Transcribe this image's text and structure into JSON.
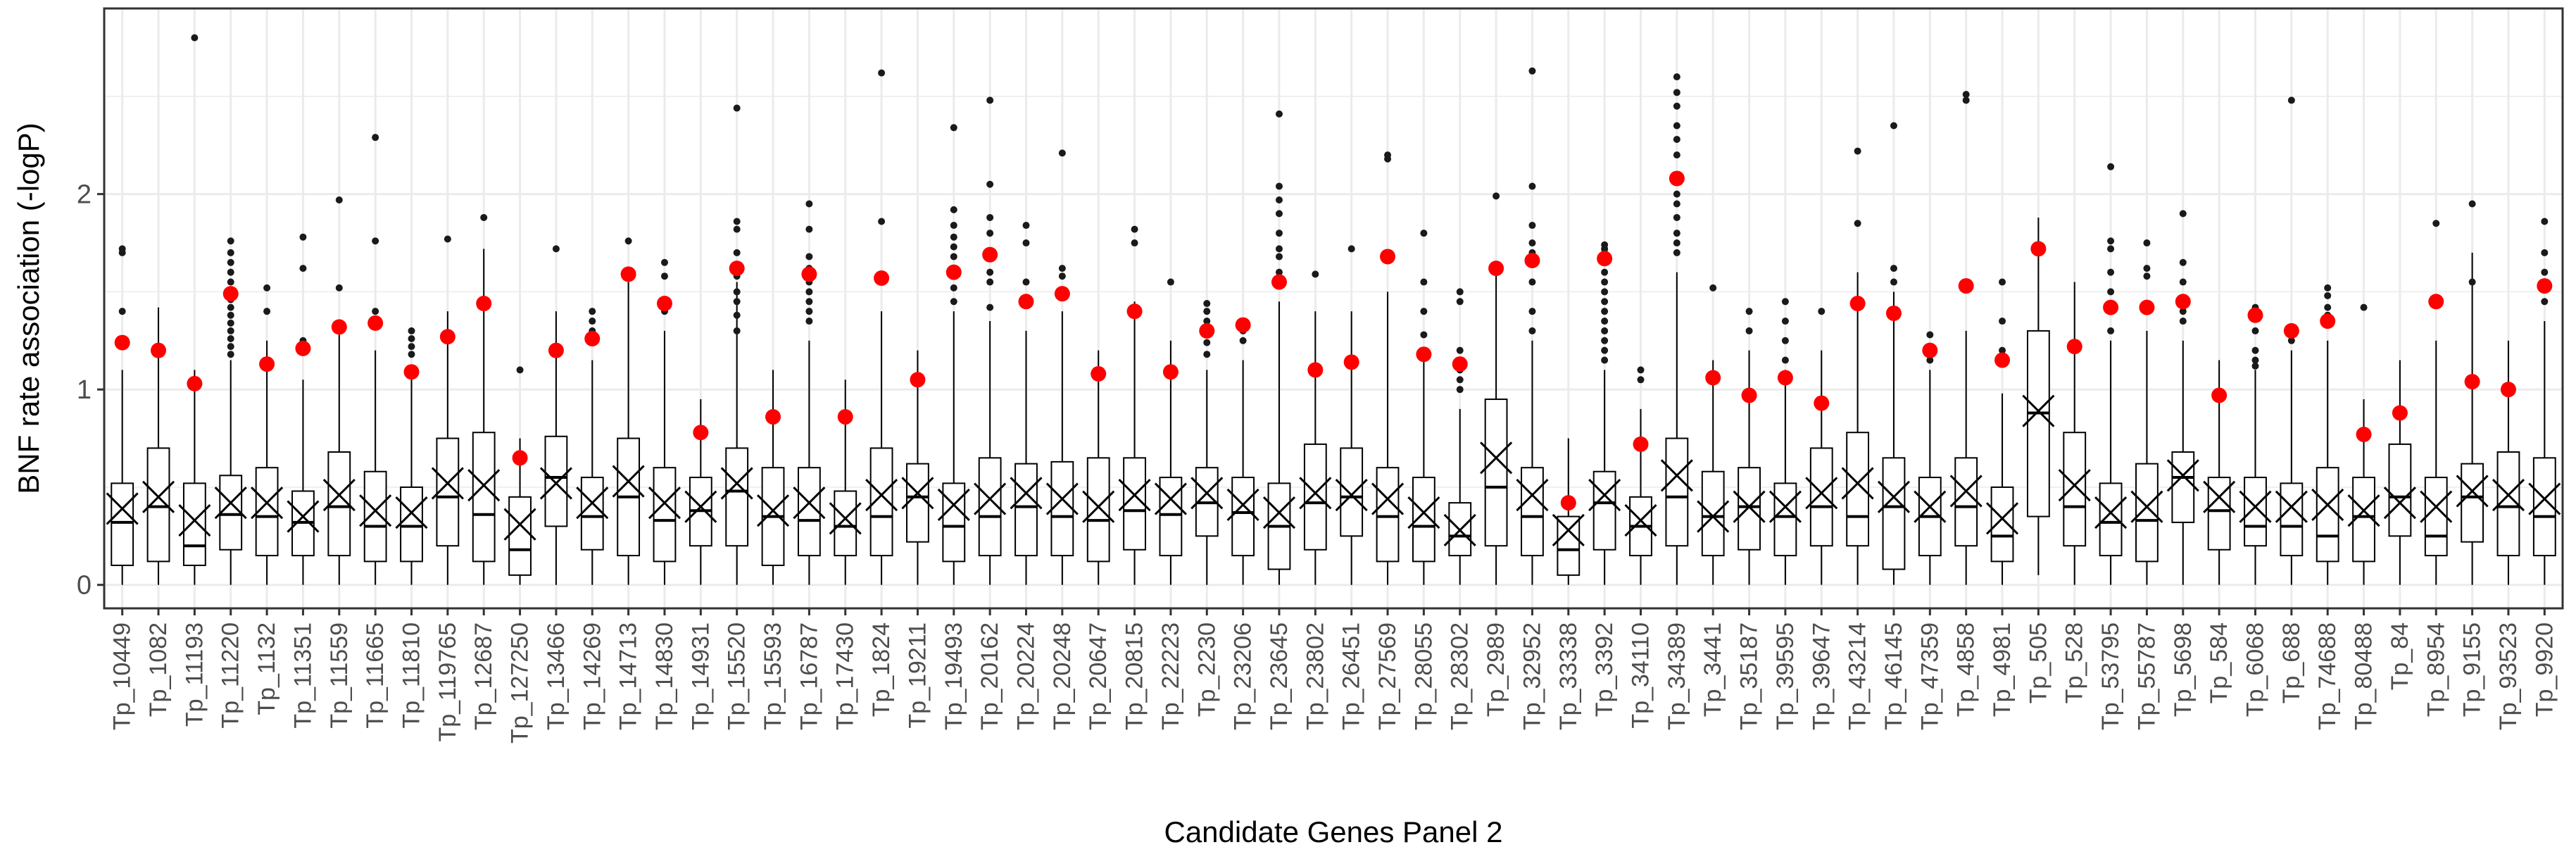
{
  "chart_data": {
    "type": "boxplot",
    "title": "",
    "xlabel": "Candidate Genes Panel 2",
    "ylabel": "BNF rate association (-logP)",
    "ylim": [
      -0.12,
      2.95
    ],
    "yticks": [
      0,
      1,
      2
    ],
    "grid": true,
    "legend": "none",
    "colors": {
      "box": "#000000",
      "highlight": "#ff0000",
      "grid": "#ebebeb",
      "panel_border": "#333333"
    },
    "mean_marker": "x-cross",
    "highlight_marker": "red-dot",
    "categories": [
      "Tp_10449",
      "Tp_1082",
      "Tp_11193",
      "Tp_11220",
      "Tp_1132",
      "Tp_11351",
      "Tp_11559",
      "Tp_11665",
      "Tp_11810",
      "Tp_119765",
      "Tp_12687",
      "Tp_127250",
      "Tp_13466",
      "Tp_14269",
      "Tp_14713",
      "Tp_14830",
      "Tp_14931",
      "Tp_15520",
      "Tp_15593",
      "Tp_16787",
      "Tp_17430",
      "Tp_1824",
      "Tp_19211",
      "Tp_19493",
      "Tp_20162",
      "Tp_20224",
      "Tp_20248",
      "Tp_20647",
      "Tp_20815",
      "Tp_22223",
      "Tp_2230",
      "Tp_23206",
      "Tp_23645",
      "Tp_23802",
      "Tp_26451",
      "Tp_27569",
      "Tp_28055",
      "Tp_28302",
      "Tp_2989",
      "Tp_32952",
      "Tp_33338",
      "Tp_3392",
      "Tp_34110",
      "Tp_34389",
      "Tp_3441",
      "Tp_35187",
      "Tp_39595",
      "Tp_39647",
      "Tp_43214",
      "Tp_46145",
      "Tp_47359",
      "Tp_4858",
      "Tp_4981",
      "Tp_505",
      "Tp_528",
      "Tp_53795",
      "Tp_55787",
      "Tp_5698",
      "Tp_584",
      "Tp_6068",
      "Tp_688",
      "Tp_74688",
      "Tp_80488",
      "Tp_84",
      "Tp_8954",
      "Tp_9155",
      "Tp_93523",
      "Tp_9920"
    ],
    "boxes": [
      {
        "lw": 0.0,
        "q1": 0.1,
        "median": 0.32,
        "q3": 0.52,
        "uw": 1.1,
        "mean": 0.39,
        "highlight": 1.24,
        "outliers": [
          1.4,
          1.7,
          1.72
        ]
      },
      {
        "lw": 0.0,
        "q1": 0.12,
        "median": 0.4,
        "q3": 0.7,
        "uw": 1.42,
        "mean": 0.45,
        "highlight": 1.2,
        "outliers": []
      },
      {
        "lw": 0.0,
        "q1": 0.1,
        "median": 0.2,
        "q3": 0.52,
        "uw": 1.1,
        "mean": 0.33,
        "highlight": 1.03,
        "outliers": [
          2.8
        ]
      },
      {
        "lw": 0.0,
        "q1": 0.18,
        "median": 0.36,
        "q3": 0.56,
        "uw": 1.15,
        "mean": 0.42,
        "highlight": 1.49,
        "outliers": [
          1.18,
          1.22,
          1.26,
          1.3,
          1.34,
          1.38,
          1.42,
          1.46,
          1.55,
          1.6,
          1.65,
          1.7,
          1.76
        ]
      },
      {
        "lw": 0.0,
        "q1": 0.15,
        "median": 0.35,
        "q3": 0.6,
        "uw": 1.25,
        "mean": 0.42,
        "highlight": 1.13,
        "outliers": [
          1.4,
          1.52
        ]
      },
      {
        "lw": 0.0,
        "q1": 0.15,
        "median": 0.32,
        "q3": 0.48,
        "uw": 1.05,
        "mean": 0.35,
        "highlight": 1.21,
        "outliers": [
          1.25,
          1.62,
          1.78
        ]
      },
      {
        "lw": 0.0,
        "q1": 0.15,
        "median": 0.4,
        "q3": 0.68,
        "uw": 1.28,
        "mean": 0.46,
        "highlight": 1.32,
        "outliers": [
          1.52,
          1.97
        ]
      },
      {
        "lw": 0.0,
        "q1": 0.12,
        "median": 0.3,
        "q3": 0.58,
        "uw": 1.2,
        "mean": 0.38,
        "highlight": 1.34,
        "outliers": [
          1.4,
          1.76,
          2.29
        ]
      },
      {
        "lw": 0.0,
        "q1": 0.12,
        "median": 0.3,
        "q3": 0.5,
        "uw": 1.1,
        "mean": 0.37,
        "highlight": 1.09,
        "outliers": [
          1.18,
          1.22,
          1.26,
          1.3
        ]
      },
      {
        "lw": 0.0,
        "q1": 0.2,
        "median": 0.45,
        "q3": 0.75,
        "uw": 1.4,
        "mean": 0.52,
        "highlight": 1.27,
        "outliers": [
          1.77
        ]
      },
      {
        "lw": 0.0,
        "q1": 0.12,
        "median": 0.36,
        "q3": 0.78,
        "uw": 1.72,
        "mean": 0.51,
        "highlight": 1.44,
        "outliers": [
          1.88
        ]
      },
      {
        "lw": 0.0,
        "q1": 0.05,
        "median": 0.18,
        "q3": 0.45,
        "uw": 0.75,
        "mean": 0.31,
        "highlight": 0.65,
        "outliers": [
          1.1
        ]
      },
      {
        "lw": 0.0,
        "q1": 0.3,
        "median": 0.55,
        "q3": 0.76,
        "uw": 1.4,
        "mean": 0.52,
        "highlight": 1.2,
        "outliers": [
          1.72
        ]
      },
      {
        "lw": 0.0,
        "q1": 0.18,
        "median": 0.35,
        "q3": 0.55,
        "uw": 1.15,
        "mean": 0.42,
        "highlight": 1.26,
        "outliers": [
          1.3,
          1.35,
          1.4
        ]
      },
      {
        "lw": 0.0,
        "q1": 0.15,
        "median": 0.45,
        "q3": 0.75,
        "uw": 1.55,
        "mean": 0.53,
        "highlight": 1.59,
        "outliers": [
          1.76
        ]
      },
      {
        "lw": 0.0,
        "q1": 0.12,
        "median": 0.33,
        "q3": 0.6,
        "uw": 1.3,
        "mean": 0.42,
        "highlight": 1.44,
        "outliers": [
          1.4,
          1.58,
          1.65
        ]
      },
      {
        "lw": 0.0,
        "q1": 0.2,
        "median": 0.38,
        "q3": 0.55,
        "uw": 0.95,
        "mean": 0.4,
        "highlight": 0.78,
        "outliers": []
      },
      {
        "lw": 0.0,
        "q1": 0.2,
        "median": 0.48,
        "q3": 0.7,
        "uw": 1.55,
        "mean": 0.52,
        "highlight": 1.62,
        "outliers": [
          1.3,
          1.38,
          1.45,
          1.5,
          1.58,
          1.7,
          1.82,
          1.86,
          2.44
        ]
      },
      {
        "lw": 0.0,
        "q1": 0.1,
        "median": 0.35,
        "q3": 0.6,
        "uw": 1.1,
        "mean": 0.38,
        "highlight": 0.86,
        "outliers": []
      },
      {
        "lw": 0.0,
        "q1": 0.15,
        "median": 0.33,
        "q3": 0.6,
        "uw": 1.25,
        "mean": 0.42,
        "highlight": 1.59,
        "outliers": [
          1.35,
          1.4,
          1.45,
          1.5,
          1.55,
          1.62,
          1.68,
          1.82,
          1.95
        ]
      },
      {
        "lw": 0.0,
        "q1": 0.15,
        "median": 0.3,
        "q3": 0.48,
        "uw": 1.05,
        "mean": 0.34,
        "highlight": 0.86,
        "outliers": []
      },
      {
        "lw": 0.0,
        "q1": 0.15,
        "median": 0.35,
        "q3": 0.7,
        "uw": 1.4,
        "mean": 0.46,
        "highlight": 1.57,
        "outliers": [
          1.86,
          2.62
        ]
      },
      {
        "lw": 0.0,
        "q1": 0.22,
        "median": 0.45,
        "q3": 0.62,
        "uw": 1.2,
        "mean": 0.47,
        "highlight": 1.05,
        "outliers": []
      },
      {
        "lw": 0.0,
        "q1": 0.12,
        "median": 0.3,
        "q3": 0.52,
        "uw": 1.4,
        "mean": 0.41,
        "highlight": 1.6,
        "outliers": [
          1.45,
          1.52,
          1.6,
          1.68,
          1.73,
          1.78,
          1.84,
          1.92,
          2.34
        ]
      },
      {
        "lw": 0.0,
        "q1": 0.15,
        "median": 0.35,
        "q3": 0.65,
        "uw": 1.35,
        "mean": 0.44,
        "highlight": 1.69,
        "outliers": [
          1.42,
          1.55,
          1.6,
          1.8,
          1.88,
          2.05,
          2.48
        ]
      },
      {
        "lw": 0.0,
        "q1": 0.15,
        "median": 0.4,
        "q3": 0.62,
        "uw": 1.3,
        "mean": 0.47,
        "highlight": 1.45,
        "outliers": [
          1.55,
          1.75,
          1.84
        ]
      },
      {
        "lw": 0.0,
        "q1": 0.15,
        "median": 0.35,
        "q3": 0.63,
        "uw": 1.4,
        "mean": 0.44,
        "highlight": 1.49,
        "outliers": [
          1.58,
          1.62,
          2.21
        ]
      },
      {
        "lw": 0.0,
        "q1": 0.12,
        "median": 0.33,
        "q3": 0.65,
        "uw": 1.2,
        "mean": 0.4,
        "highlight": 1.08,
        "outliers": []
      },
      {
        "lw": 0.0,
        "q1": 0.18,
        "median": 0.38,
        "q3": 0.65,
        "uw": 1.45,
        "mean": 0.46,
        "highlight": 1.4,
        "outliers": [
          1.75,
          1.82
        ]
      },
      {
        "lw": 0.0,
        "q1": 0.15,
        "median": 0.36,
        "q3": 0.55,
        "uw": 1.25,
        "mean": 0.44,
        "highlight": 1.09,
        "outliers": [
          1.55
        ]
      },
      {
        "lw": 0.0,
        "q1": 0.25,
        "median": 0.42,
        "q3": 0.6,
        "uw": 1.1,
        "mean": 0.47,
        "highlight": 1.3,
        "outliers": [
          1.18,
          1.24,
          1.3,
          1.35,
          1.4,
          1.44
        ]
      },
      {
        "lw": 0.0,
        "q1": 0.15,
        "median": 0.37,
        "q3": 0.55,
        "uw": 1.15,
        "mean": 0.41,
        "highlight": 1.33,
        "outliers": [
          1.25,
          1.3
        ]
      },
      {
        "lw": 0.0,
        "q1": 0.08,
        "median": 0.3,
        "q3": 0.52,
        "uw": 1.45,
        "mean": 0.37,
        "highlight": 1.55,
        "outliers": [
          1.6,
          1.68,
          1.72,
          1.8,
          1.9,
          1.97,
          2.04,
          2.41
        ]
      },
      {
        "lw": 0.0,
        "q1": 0.18,
        "median": 0.42,
        "q3": 0.72,
        "uw": 1.4,
        "mean": 0.47,
        "highlight": 1.1,
        "outliers": [
          1.59
        ]
      },
      {
        "lw": 0.0,
        "q1": 0.25,
        "median": 0.45,
        "q3": 0.7,
        "uw": 1.4,
        "mean": 0.46,
        "highlight": 1.14,
        "outliers": [
          1.72
        ]
      },
      {
        "lw": 0.0,
        "q1": 0.12,
        "median": 0.35,
        "q3": 0.6,
        "uw": 1.5,
        "mean": 0.44,
        "highlight": 1.68,
        "outliers": [
          2.18,
          2.2
        ]
      },
      {
        "lw": 0.0,
        "q1": 0.12,
        "median": 0.3,
        "q3": 0.55,
        "uw": 1.15,
        "mean": 0.37,
        "highlight": 1.18,
        "outliers": [
          1.28,
          1.4,
          1.55,
          1.8
        ]
      },
      {
        "lw": 0.0,
        "q1": 0.15,
        "median": 0.25,
        "q3": 0.42,
        "uw": 0.9,
        "mean": 0.28,
        "highlight": 1.13,
        "outliers": [
          1.0,
          1.05,
          1.1,
          1.15,
          1.2,
          1.45,
          1.5
        ]
      },
      {
        "lw": 0.0,
        "q1": 0.2,
        "median": 0.5,
        "q3": 0.95,
        "uw": 1.6,
        "mean": 0.65,
        "highlight": 1.62,
        "outliers": [
          1.99
        ]
      },
      {
        "lw": 0.0,
        "q1": 0.15,
        "median": 0.35,
        "q3": 0.6,
        "uw": 1.25,
        "mean": 0.46,
        "highlight": 1.66,
        "outliers": [
          1.3,
          1.4,
          1.55,
          1.7,
          1.75,
          1.84,
          2.04,
          2.63
        ]
      },
      {
        "lw": 0.0,
        "q1": 0.05,
        "median": 0.18,
        "q3": 0.35,
        "uw": 0.75,
        "mean": 0.28,
        "highlight": 0.42,
        "outliers": []
      },
      {
        "lw": 0.0,
        "q1": 0.18,
        "median": 0.42,
        "q3": 0.58,
        "uw": 1.1,
        "mean": 0.46,
        "highlight": 1.67,
        "outliers": [
          1.15,
          1.2,
          1.25,
          1.3,
          1.35,
          1.4,
          1.45,
          1.5,
          1.55,
          1.6,
          1.65,
          1.7,
          1.72,
          1.74
        ]
      },
      {
        "lw": 0.0,
        "q1": 0.15,
        "median": 0.3,
        "q3": 0.45,
        "uw": 0.9,
        "mean": 0.33,
        "highlight": 0.72,
        "outliers": [
          1.05,
          1.1
        ]
      },
      {
        "lw": 0.0,
        "q1": 0.2,
        "median": 0.45,
        "q3": 0.75,
        "uw": 1.6,
        "mean": 0.56,
        "highlight": 2.08,
        "outliers": [
          1.7,
          1.75,
          1.8,
          1.88,
          1.95,
          2.0,
          2.1,
          2.2,
          2.28,
          2.35,
          2.45,
          2.52,
          2.6
        ]
      },
      {
        "lw": 0.0,
        "q1": 0.15,
        "median": 0.35,
        "q3": 0.58,
        "uw": 1.15,
        "mean": 0.35,
        "highlight": 1.06,
        "outliers": [
          1.52
        ]
      },
      {
        "lw": 0.0,
        "q1": 0.18,
        "median": 0.4,
        "q3": 0.6,
        "uw": 1.2,
        "mean": 0.4,
        "highlight": 0.97,
        "outliers": [
          1.3,
          1.4
        ]
      },
      {
        "lw": 0.0,
        "q1": 0.15,
        "median": 0.35,
        "q3": 0.52,
        "uw": 1.1,
        "mean": 0.4,
        "highlight": 1.06,
        "outliers": [
          1.15,
          1.25,
          1.35,
          1.45
        ]
      },
      {
        "lw": 0.0,
        "q1": 0.2,
        "median": 0.4,
        "q3": 0.7,
        "uw": 1.2,
        "mean": 0.47,
        "highlight": 0.93,
        "outliers": [
          1.4
        ]
      },
      {
        "lw": 0.0,
        "q1": 0.2,
        "median": 0.35,
        "q3": 0.78,
        "uw": 1.6,
        "mean": 0.52,
        "highlight": 1.44,
        "outliers": [
          1.85,
          2.22
        ]
      },
      {
        "lw": 0.0,
        "q1": 0.08,
        "median": 0.4,
        "q3": 0.65,
        "uw": 1.5,
        "mean": 0.45,
        "highlight": 1.39,
        "outliers": [
          1.55,
          1.62,
          2.35
        ]
      },
      {
        "lw": 0.0,
        "q1": 0.15,
        "median": 0.35,
        "q3": 0.55,
        "uw": 1.1,
        "mean": 0.4,
        "highlight": 1.2,
        "outliers": [
          1.15,
          1.2,
          1.28
        ]
      },
      {
        "lw": 0.0,
        "q1": 0.2,
        "median": 0.4,
        "q3": 0.65,
        "uw": 1.3,
        "mean": 0.48,
        "highlight": 1.53,
        "outliers": [
          2.48,
          2.51
        ]
      },
      {
        "lw": 0.0,
        "q1": 0.12,
        "median": 0.25,
        "q3": 0.5,
        "uw": 0.98,
        "mean": 0.34,
        "highlight": 1.15,
        "outliers": [
          1.2,
          1.35,
          1.55
        ]
      },
      {
        "lw": 0.05,
        "q1": 0.35,
        "median": 0.88,
        "q3": 1.3,
        "uw": 1.88,
        "mean": 0.89,
        "highlight": 1.72,
        "outliers": []
      },
      {
        "lw": 0.0,
        "q1": 0.2,
        "median": 0.4,
        "q3": 0.78,
        "uw": 1.55,
        "mean": 0.51,
        "highlight": 1.22,
        "outliers": []
      },
      {
        "lw": 0.0,
        "q1": 0.15,
        "median": 0.32,
        "q3": 0.52,
        "uw": 1.25,
        "mean": 0.37,
        "highlight": 1.42,
        "outliers": [
          1.3,
          1.4,
          1.5,
          1.6,
          1.72,
          1.76,
          2.14
        ]
      },
      {
        "lw": 0.0,
        "q1": 0.12,
        "median": 0.33,
        "q3": 0.62,
        "uw": 1.3,
        "mean": 0.4,
        "highlight": 1.42,
        "outliers": [
          1.58,
          1.62,
          1.75
        ]
      },
      {
        "lw": 0.0,
        "q1": 0.32,
        "median": 0.55,
        "q3": 0.68,
        "uw": 1.25,
        "mean": 0.56,
        "highlight": 1.45,
        "outliers": [
          1.35,
          1.4,
          1.55,
          1.65,
          1.9
        ]
      },
      {
        "lw": 0.0,
        "q1": 0.18,
        "median": 0.38,
        "q3": 0.55,
        "uw": 1.15,
        "mean": 0.45,
        "highlight": 0.97,
        "outliers": []
      },
      {
        "lw": 0.0,
        "q1": 0.2,
        "median": 0.3,
        "q3": 0.55,
        "uw": 1.1,
        "mean": 0.4,
        "highlight": 1.38,
        "outliers": [
          1.12,
          1.15,
          1.2,
          1.3,
          1.4,
          1.42
        ]
      },
      {
        "lw": 0.0,
        "q1": 0.15,
        "median": 0.3,
        "q3": 0.52,
        "uw": 1.2,
        "mean": 0.4,
        "highlight": 1.3,
        "outliers": [
          1.25,
          1.32,
          2.48
        ]
      },
      {
        "lw": 0.0,
        "q1": 0.12,
        "median": 0.25,
        "q3": 0.6,
        "uw": 1.25,
        "mean": 0.41,
        "highlight": 1.35,
        "outliers": [
          1.38,
          1.42,
          1.48,
          1.52
        ]
      },
      {
        "lw": 0.0,
        "q1": 0.12,
        "median": 0.35,
        "q3": 0.55,
        "uw": 0.95,
        "mean": 0.38,
        "highlight": 0.77,
        "outliers": [
          1.42
        ]
      },
      {
        "lw": 0.0,
        "q1": 0.25,
        "median": 0.45,
        "q3": 0.72,
        "uw": 1.15,
        "mean": 0.42,
        "highlight": 0.88,
        "outliers": []
      },
      {
        "lw": 0.0,
        "q1": 0.15,
        "median": 0.25,
        "q3": 0.55,
        "uw": 1.25,
        "mean": 0.4,
        "highlight": 1.45,
        "outliers": [
          1.85
        ]
      },
      {
        "lw": 0.0,
        "q1": 0.22,
        "median": 0.45,
        "q3": 0.62,
        "uw": 1.7,
        "mean": 0.48,
        "highlight": 1.04,
        "outliers": [
          1.05,
          1.55,
          1.95
        ]
      },
      {
        "lw": 0.0,
        "q1": 0.15,
        "median": 0.4,
        "q3": 0.68,
        "uw": 1.25,
        "mean": 0.46,
        "highlight": 1.0,
        "outliers": []
      },
      {
        "lw": 0.0,
        "q1": 0.15,
        "median": 0.35,
        "q3": 0.65,
        "uw": 1.35,
        "mean": 0.44,
        "highlight": 1.53,
        "outliers": [
          1.45,
          1.6,
          1.7,
          1.86
        ]
      }
    ]
  }
}
